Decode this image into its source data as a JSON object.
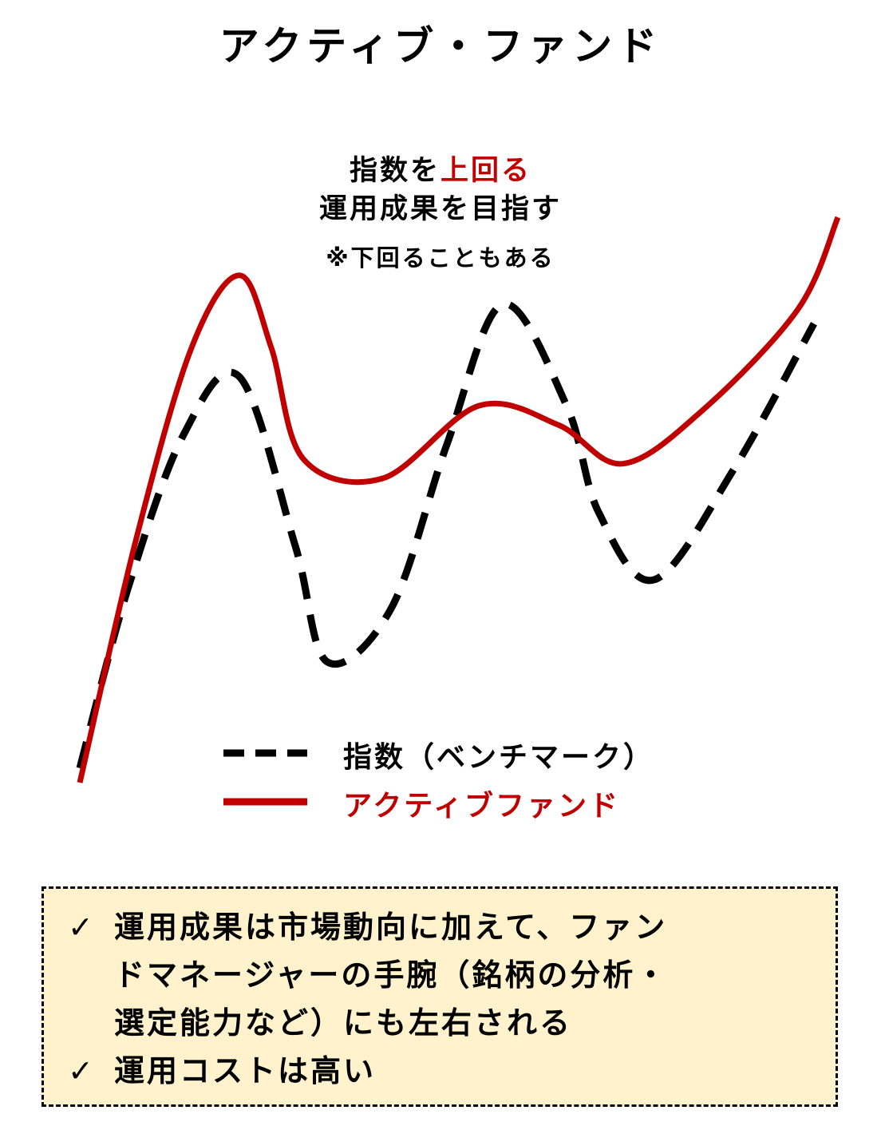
{
  "title": "アクティブ・ファンド",
  "caption": {
    "line1_prefix": "指数を",
    "line1_highlight": "上回る",
    "line2": "運用成果を目指す",
    "note": "※下回ることもある"
  },
  "colors": {
    "index": "#000000",
    "active": "#c00000",
    "note_bg": "#fff2cc"
  },
  "chart_data": {
    "type": "line",
    "title": "",
    "xlabel": "",
    "ylabel": "",
    "series": [
      {
        "name": "指数（ベンチマーク）",
        "style": "dashed",
        "color": "#000000",
        "points": [
          [
            0.0,
            0.03
          ],
          [
            0.06,
            0.4
          ],
          [
            0.13,
            0.72
          ],
          [
            0.2,
            0.84
          ],
          [
            0.27,
            0.49
          ],
          [
            0.31,
            0.25
          ],
          [
            0.39,
            0.36
          ],
          [
            0.46,
            0.7
          ],
          [
            0.53,
            0.99
          ],
          [
            0.61,
            0.78
          ],
          [
            0.65,
            0.56
          ],
          [
            0.72,
            0.42
          ],
          [
            0.82,
            0.65
          ],
          [
            0.92,
            0.95
          ]
        ]
      },
      {
        "name": "アクティブファンド",
        "style": "solid",
        "color": "#c00000",
        "points": [
          [
            0.0,
            0.0
          ],
          [
            0.07,
            0.5
          ],
          [
            0.14,
            0.9
          ],
          [
            0.2,
            1.05
          ],
          [
            0.24,
            0.9
          ],
          [
            0.28,
            0.67
          ],
          [
            0.38,
            0.63
          ],
          [
            0.5,
            0.78
          ],
          [
            0.6,
            0.74
          ],
          [
            0.68,
            0.66
          ],
          [
            0.78,
            0.77
          ],
          [
            0.9,
            0.98
          ],
          [
            0.95,
            1.17
          ]
        ]
      }
    ],
    "legend": "bottom-center",
    "grid": false
  },
  "notes": [
    {
      "lines": [
        "運用成果は市場動向に加えて、ファン",
        "ドマネージャーの手腕（銘柄の分析・",
        "選定能力など）にも左右される"
      ]
    },
    {
      "lines": [
        "運用コストは高い"
      ]
    }
  ],
  "check_mark": "✓"
}
